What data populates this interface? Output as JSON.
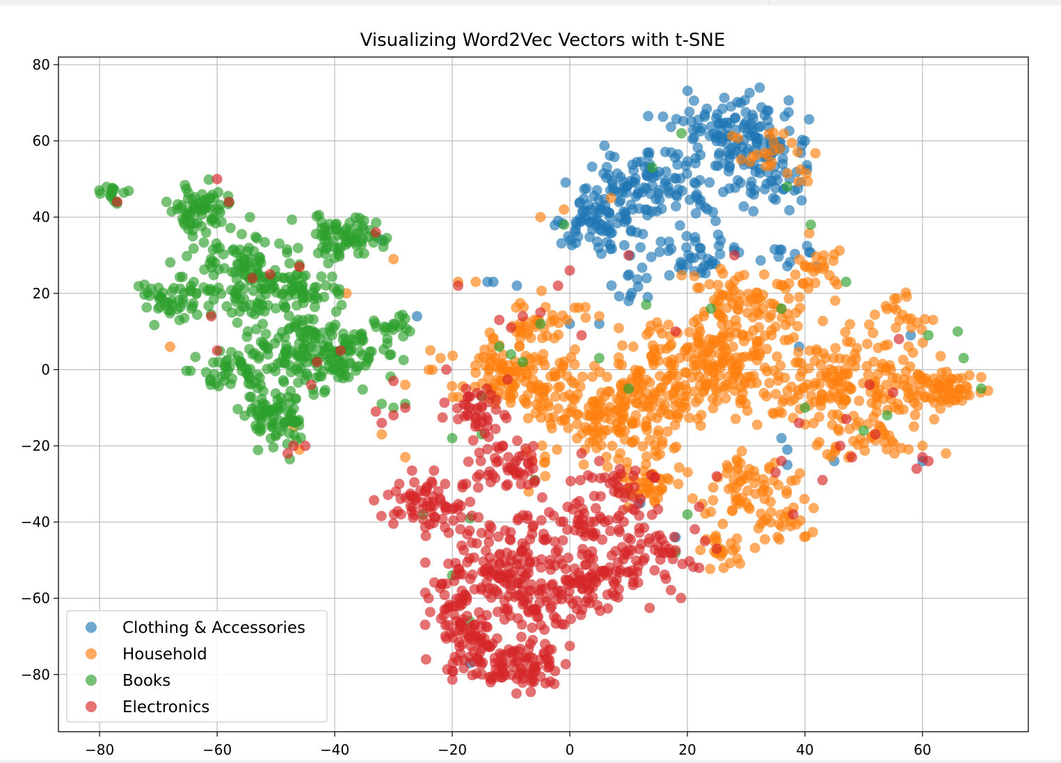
{
  "chart_data": {
    "type": "scatter",
    "title": "Visualizing Word2Vec Vectors with t-SNE",
    "xlabel": "",
    "ylabel": "",
    "xlim": [
      -87,
      78
    ],
    "ylim": [
      -95,
      82
    ],
    "xticks": [
      -80,
      -60,
      -40,
      -20,
      0,
      20,
      40,
      60
    ],
    "yticks": [
      -80,
      -60,
      -40,
      -20,
      0,
      20,
      40,
      60,
      80
    ],
    "xtick_labels": [
      "−80",
      "−60",
      "−40",
      "−20",
      "0",
      "20",
      "40",
      "60"
    ],
    "ytick_labels": [
      "−80",
      "−60",
      "−40",
      "−20",
      "0",
      "20",
      "40",
      "60",
      "80"
    ],
    "grid": true,
    "legend_position": "lower-left",
    "marker_alpha": 0.65,
    "series": [
      {
        "name": "Clothing & Accessories",
        "color": "#1f77b4",
        "clusters": [
          [
            28,
            62,
            8,
            7,
            120
          ],
          [
            15,
            48,
            9,
            6,
            110
          ],
          [
            5,
            38,
            6,
            6,
            80
          ],
          [
            34,
            50,
            5,
            8,
            50
          ],
          [
            22,
            30,
            6,
            4,
            40
          ],
          [
            10,
            22,
            3,
            3,
            10
          ],
          [
            38,
            30,
            4,
            3,
            10
          ]
        ],
        "points": [
          [
            -32,
            34
          ],
          [
            -26,
            14
          ],
          [
            -14,
            23
          ],
          [
            -9,
            22
          ],
          [
            0,
            12
          ],
          [
            5,
            12
          ],
          [
            10,
            18
          ],
          [
            -13,
            23
          ],
          [
            37,
            -21
          ],
          [
            36,
            -18
          ],
          [
            37,
            -25
          ],
          [
            58,
            9
          ],
          [
            60,
            -24
          ],
          [
            39,
            6
          ],
          [
            45,
            -24
          ],
          [
            18,
            -44
          ],
          [
            12,
            -35
          ],
          [
            -17,
            -77
          ],
          [
            -2,
            39
          ],
          [
            40,
            60
          ],
          [
            42,
            27
          ]
        ]
      },
      {
        "name": "Household",
        "color": "#ff7f0e",
        "clusters": [
          [
            25,
            0,
            12,
            10,
            260
          ],
          [
            8,
            -12,
            10,
            9,
            180
          ],
          [
            -10,
            -2,
            8,
            6,
            120
          ],
          [
            48,
            -3,
            10,
            8,
            120
          ],
          [
            62,
            -5,
            6,
            4,
            70
          ],
          [
            30,
            18,
            8,
            6,
            80
          ],
          [
            30,
            -30,
            6,
            6,
            60
          ],
          [
            37,
            -40,
            4,
            4,
            25
          ],
          [
            26,
            -47,
            3,
            4,
            25
          ],
          [
            13,
            -30,
            5,
            4,
            40
          ],
          [
            50,
            -18,
            6,
            4,
            40
          ],
          [
            41,
            28,
            4,
            5,
            25
          ],
          [
            35,
            56,
            5,
            6,
            25
          ],
          [
            -5,
            12,
            6,
            5,
            40
          ],
          [
            55,
            14,
            5,
            5,
            25
          ]
        ],
        "points": [
          [
            -46,
            -21
          ],
          [
            -46,
            27
          ],
          [
            -38,
            20
          ],
          [
            -30,
            29
          ],
          [
            -68,
            6
          ],
          [
            -28,
            -23
          ],
          [
            -32,
            -17
          ],
          [
            -22,
            3
          ],
          [
            -28,
            -4
          ],
          [
            -19,
            23
          ],
          [
            -16,
            23
          ],
          [
            -47,
            -15
          ],
          [
            47,
            -8
          ],
          [
            60,
            -20
          ],
          [
            64,
            -22
          ],
          [
            70,
            -2
          ],
          [
            -5,
            40
          ],
          [
            -1,
            42
          ],
          [
            7,
            45
          ],
          [
            5,
            14
          ],
          [
            -7,
            -32
          ]
        ]
      },
      {
        "name": "Books",
        "color": "#2ca02c",
        "clusters": [
          [
            -45,
            5,
            7,
            8,
            150
          ],
          [
            -55,
            25,
            7,
            8,
            140
          ],
          [
            -63,
            42,
            4,
            5,
            70
          ],
          [
            -38,
            35,
            4,
            4,
            70
          ],
          [
            -50,
            -12,
            4,
            6,
            80
          ],
          [
            -68,
            18,
            4,
            4,
            40
          ],
          [
            -78,
            46,
            2,
            1.5,
            15
          ],
          [
            -35,
            5,
            4,
            4,
            40
          ],
          [
            -30,
            12,
            3,
            2,
            15
          ],
          [
            -57,
            0,
            5,
            6,
            50
          ],
          [
            -45,
            20,
            5,
            4,
            40
          ]
        ],
        "points": [
          [
            -32,
            -9
          ],
          [
            -30,
            -10
          ],
          [
            -28,
            -9
          ],
          [
            -15,
            -17
          ],
          [
            -20,
            -18
          ],
          [
            -12,
            6
          ],
          [
            -10,
            4
          ],
          [
            -5,
            12
          ],
          [
            -8,
            2
          ],
          [
            -6,
            -29
          ],
          [
            -1,
            38
          ],
          [
            14,
            53
          ],
          [
            19,
            62
          ],
          [
            37,
            48
          ],
          [
            41,
            38
          ],
          [
            47,
            23
          ],
          [
            66,
            10
          ],
          [
            67,
            3
          ],
          [
            70,
            -5
          ],
          [
            61,
            9
          ],
          [
            -15,
            -7
          ],
          [
            -25,
            -38
          ],
          [
            -17,
            -39
          ],
          [
            -17,
            -66
          ],
          [
            -20,
            -54
          ],
          [
            18,
            -48
          ],
          [
            20,
            -38
          ],
          [
            13,
            17
          ],
          [
            5,
            3
          ],
          [
            10,
            -5
          ],
          [
            36,
            16
          ],
          [
            24,
            16
          ],
          [
            40,
            -10
          ],
          [
            50,
            -16
          ],
          [
            54,
            -12
          ],
          [
            -30,
            12
          ],
          [
            -29,
            14
          ]
        ]
      },
      {
        "name": "Electronics",
        "color": "#d62728",
        "clusters": [
          [
            -10,
            -55,
            8,
            10,
            200
          ],
          [
            -8,
            -78,
            5,
            5,
            80
          ],
          [
            -17,
            -72,
            4,
            6,
            60
          ],
          [
            -24,
            -35,
            5,
            5,
            70
          ],
          [
            -10,
            -25,
            5,
            5,
            50
          ],
          [
            -16,
            -10,
            5,
            5,
            40
          ],
          [
            5,
            -55,
            5,
            6,
            70
          ],
          [
            13,
            -48,
            5,
            8,
            60
          ],
          [
            0,
            -40,
            8,
            4,
            50
          ],
          [
            8,
            -30,
            5,
            4,
            30
          ],
          [
            -20,
            -60,
            3,
            6,
            30
          ]
        ],
        "points": [
          [
            -77,
            44
          ],
          [
            -60,
            50
          ],
          [
            -58,
            44
          ],
          [
            -61,
            14
          ],
          [
            -60,
            5
          ],
          [
            -54,
            24
          ],
          [
            -51,
            25
          ],
          [
            -46,
            27
          ],
          [
            -43,
            2
          ],
          [
            -44,
            -4
          ],
          [
            -47,
            -20
          ],
          [
            -45,
            -20
          ],
          [
            -48,
            -22
          ],
          [
            -39,
            5
          ],
          [
            -33,
            36
          ],
          [
            -32,
            -14
          ],
          [
            -33,
            -11
          ],
          [
            -30,
            -12
          ],
          [
            -28,
            -10
          ],
          [
            -30,
            -3
          ],
          [
            -19,
            22
          ],
          [
            -21,
            0
          ],
          [
            -19,
            -13
          ],
          [
            -10,
            11
          ],
          [
            -5,
            15
          ],
          [
            -12,
            13
          ],
          [
            -8,
            14
          ],
          [
            2,
            9
          ],
          [
            10,
            30
          ],
          [
            2,
            -22
          ],
          [
            5,
            -24
          ],
          [
            -2,
            22
          ],
          [
            0,
            26
          ],
          [
            18,
            10
          ],
          [
            28,
            30
          ],
          [
            56,
            8
          ],
          [
            60,
            -23
          ],
          [
            61,
            -24
          ],
          [
            59,
            -26
          ],
          [
            36,
            -24
          ],
          [
            35,
            -27
          ],
          [
            39,
            -14
          ],
          [
            46,
            -20
          ],
          [
            48,
            -23
          ],
          [
            43,
            -29
          ],
          [
            38,
            -38
          ],
          [
            52,
            -17
          ],
          [
            51,
            -4
          ],
          [
            55,
            -6
          ],
          [
            25,
            -28
          ],
          [
            22,
            -36
          ],
          [
            23,
            -45
          ],
          [
            25,
            -47
          ],
          [
            22,
            -52
          ],
          [
            47,
            -13
          ]
        ]
      }
    ]
  }
}
